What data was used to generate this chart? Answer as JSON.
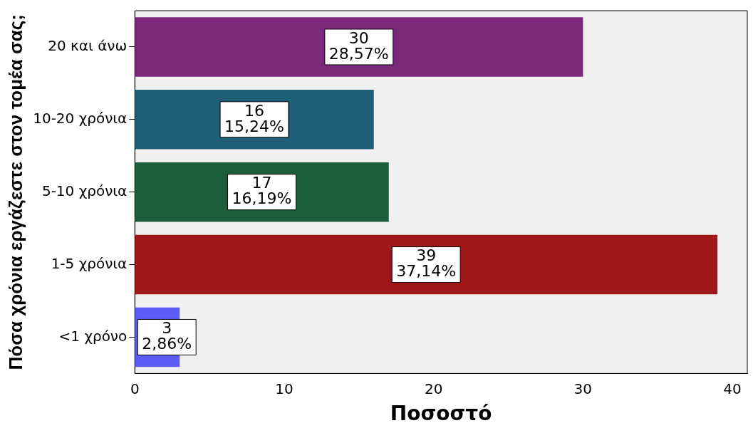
{
  "chart_data": {
    "type": "bar",
    "orientation": "horizontal",
    "ylabel": "Πόσα χρόνια εργάζεστε στον τομέα σας;",
    "xlabel": "Ποσοστό",
    "categories": [
      "20 και άνω",
      "10-20 χρόνια",
      "5-10 χρόνια",
      "1-5 χρόνια",
      "<1 χρόνο"
    ],
    "values": [
      30,
      16,
      17,
      39,
      3
    ],
    "colors": [
      "#7b2a7b",
      "#1f5f78",
      "#1d5e3a",
      "#a0171a",
      "#5b5bf5"
    ],
    "value_labels": [
      "30\n28,57%",
      "16\n15,24%",
      "17\n16,19%",
      "39\n37,14%",
      "3\n2,86%"
    ],
    "xlim": [
      0,
      41
    ],
    "xticks": [
      0,
      10,
      20,
      30,
      40
    ],
    "grid": false,
    "legend": false
  }
}
